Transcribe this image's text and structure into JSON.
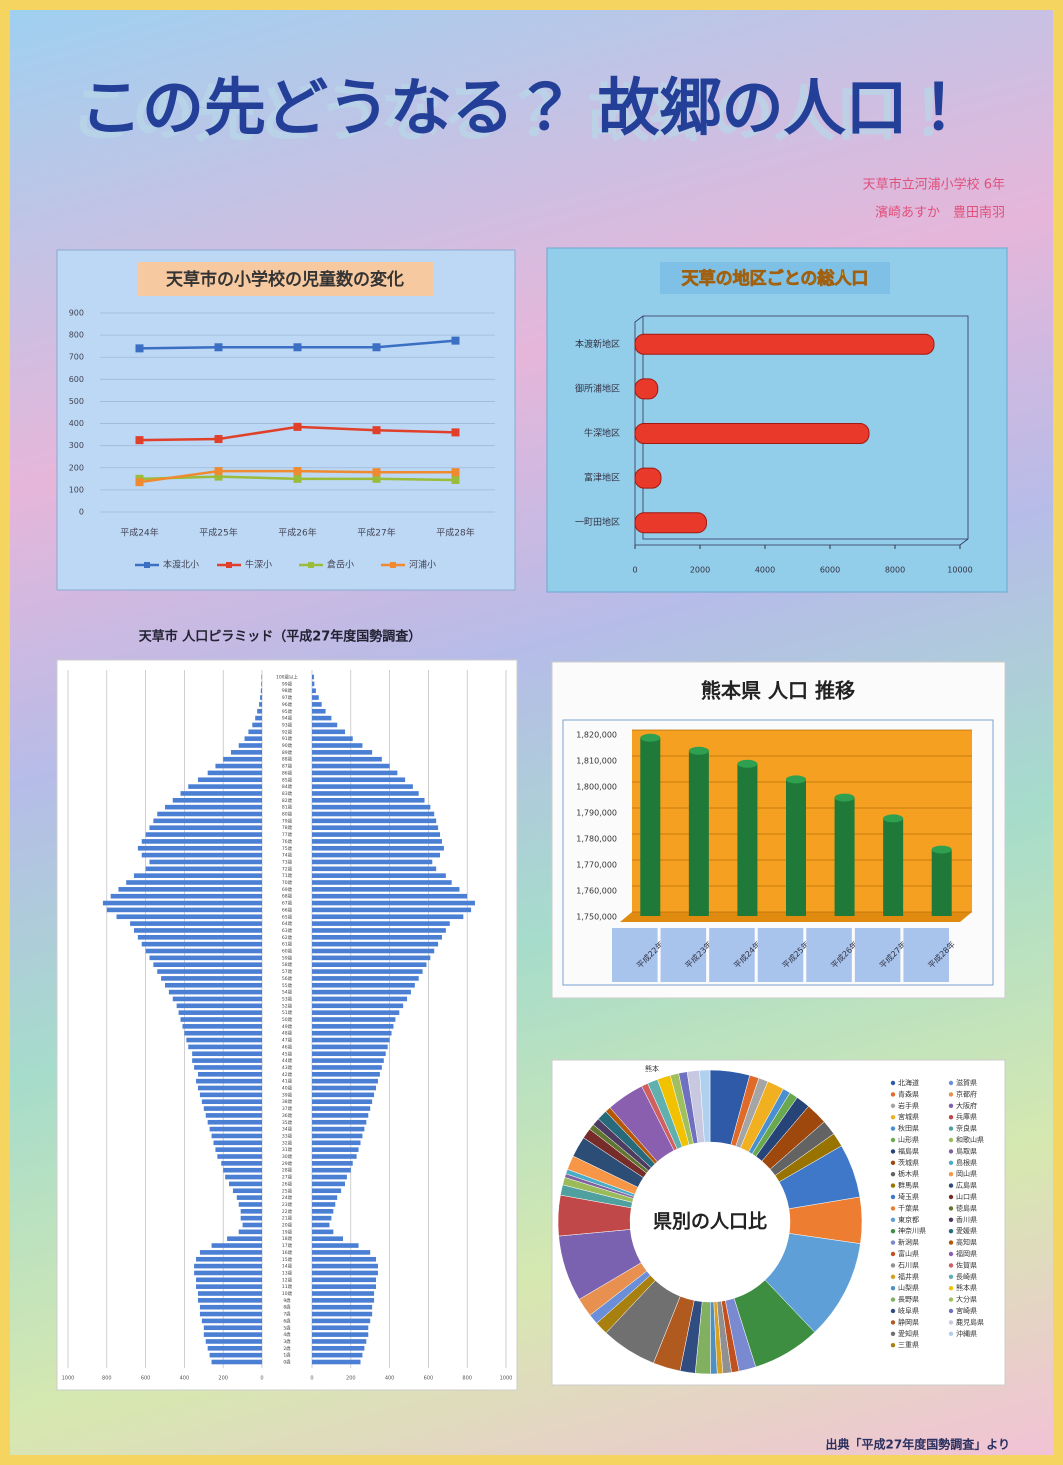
{
  "poster": {
    "title": "この先どうなる？ 故郷の人口！",
    "school": "天草市立河浦小学校 6年",
    "authors": "濱崎あすか　豊田南羽",
    "source": "出典「平成27年度国勢調査」より"
  },
  "chart_data": [
    {
      "type": "line",
      "title": "天草市の小学校の児童数の変化",
      "categories": [
        "平成24年",
        "平成25年",
        "平成26年",
        "平成27年",
        "平成28年"
      ],
      "ylim": [
        0,
        900
      ],
      "yticks": [
        0,
        100,
        200,
        300,
        400,
        500,
        600,
        700,
        800,
        900
      ],
      "grid": true,
      "legend": "bottom",
      "series": [
        {
          "name": "本渡北小",
          "color": "#3a6fc4",
          "values": [
            740,
            745,
            745,
            745,
            775
          ]
        },
        {
          "name": "牛深小",
          "color": "#e0402a",
          "values": [
            325,
            330,
            385,
            370,
            360
          ]
        },
        {
          "name": "倉岳小",
          "color": "#9bbb3a",
          "values": [
            150,
            160,
            150,
            150,
            145
          ]
        },
        {
          "name": "河浦小",
          "color": "#f08a30",
          "values": [
            135,
            185,
            185,
            180,
            180
          ]
        }
      ]
    },
    {
      "type": "bar",
      "horizontal": true,
      "title": "天草の地区ごとの総人口",
      "categories": [
        "本渡新地区",
        "御所浦地区",
        "牛深地区",
        "富津地区",
        "一町田地区"
      ],
      "values": [
        9200,
        700,
        7200,
        800,
        2200
      ],
      "color": "#e8392a",
      "xlim": [
        0,
        10000
      ],
      "xticks": [
        0,
        2000,
        4000,
        6000,
        8000,
        10000
      ]
    },
    {
      "type": "pyramid",
      "title": "天草市 人口ピラミッド（平成27年度国勢調査）",
      "categories": [
        "0歳",
        "1歳",
        "2歳",
        "3歳",
        "4歳",
        "5歳",
        "6歳",
        "7歳",
        "8歳",
        "9歳",
        "10歳",
        "11歳",
        "12歳",
        "13歳",
        "14歳",
        "15歳",
        "16歳",
        "17歳",
        "18歳",
        "19歳",
        "20歳",
        "21歳",
        "22歳",
        "23歳",
        "24歳",
        "25歳",
        "26歳",
        "27歳",
        "28歳",
        "29歳",
        "30歳",
        "31歳",
        "32歳",
        "33歳",
        "34歳",
        "35歳",
        "36歳",
        "37歳",
        "38歳",
        "39歳",
        "40歳",
        "41歳",
        "42歳",
        "43歳",
        "44歳",
        "45歳",
        "46歳",
        "47歳",
        "48歳",
        "49歳",
        "50歳",
        "51歳",
        "52歳",
        "53歳",
        "54歳",
        "55歳",
        "56歳",
        "57歳",
        "58歳",
        "59歳",
        "60歳",
        "61歳",
        "62歳",
        "63歳",
        "64歳",
        "65歳",
        "66歳",
        "67歳",
        "68歳",
        "69歳",
        "70歳",
        "71歳",
        "72歳",
        "73歳",
        "74歳",
        "75歳",
        "76歳",
        "77歳",
        "78歳",
        "79歳",
        "80歳",
        "81歳",
        "82歳",
        "83歳",
        "84歳",
        "85歳",
        "86歳",
        "87歳",
        "88歳",
        "89歳",
        "90歳",
        "91歳",
        "92歳",
        "93歳",
        "94歳",
        "95歳",
        "96歳",
        "97歳",
        "98歳",
        "99歳",
        "100歳以上"
      ],
      "xlim": [
        0,
        1000
      ],
      "xticks": [
        0,
        200,
        400,
        600,
        800,
        1000
      ],
      "grid": true,
      "series": [
        {
          "color": "#4a7fd4",
          "values": [
            260,
            270,
            280,
            290,
            300,
            300,
            310,
            320,
            320,
            330,
            330,
            340,
            340,
            350,
            350,
            340,
            320,
            260,
            180,
            120,
            100,
            110,
            110,
            120,
            130,
            150,
            170,
            190,
            200,
            210,
            230,
            240,
            250,
            260,
            270,
            280,
            290,
            300,
            310,
            320,
            330,
            340,
            330,
            350,
            360,
            360,
            380,
            390,
            400,
            410,
            420,
            430,
            440,
            460,
            480,
            500,
            520,
            540,
            560,
            580,
            600,
            620,
            640,
            660,
            680,
            750,
            800,
            820,
            780,
            740,
            700,
            660,
            600,
            580,
            620,
            640,
            620,
            600,
            580,
            560,
            540,
            500,
            460,
            420,
            380,
            330,
            280,
            240,
            200,
            160,
            120,
            90,
            70,
            50,
            35,
            25,
            15,
            10,
            6,
            4,
            3
          ]
        },
        {
          "color": "#4a7fd4",
          "values": [
            250,
            260,
            270,
            280,
            290,
            290,
            300,
            310,
            310,
            320,
            320,
            330,
            330,
            340,
            340,
            330,
            300,
            240,
            160,
            110,
            90,
            100,
            110,
            120,
            130,
            150,
            170,
            180,
            200,
            210,
            230,
            240,
            250,
            260,
            270,
            280,
            290,
            300,
            310,
            320,
            330,
            340,
            350,
            360,
            370,
            380,
            390,
            400,
            410,
            420,
            430,
            450,
            470,
            490,
            510,
            530,
            550,
            570,
            590,
            610,
            630,
            650,
            670,
            690,
            710,
            780,
            820,
            840,
            800,
            760,
            720,
            690,
            640,
            620,
            660,
            680,
            670,
            660,
            650,
            640,
            630,
            610,
            580,
            550,
            520,
            480,
            440,
            400,
            360,
            310,
            260,
            210,
            170,
            130,
            100,
            70,
            50,
            35,
            20,
            12,
            10
          ]
        }
      ]
    },
    {
      "type": "bar",
      "horizontal": false,
      "title": "熊本県 人口 推移",
      "categories": [
        "平成22年",
        "平成23年",
        "平成24年",
        "平成25年",
        "平成26年",
        "平成27年",
        "平成28年"
      ],
      "values": [
        1817000,
        1812000,
        1807000,
        1801000,
        1794000,
        1786000,
        1774000
      ],
      "color": "#1f7a3a",
      "ylim": [
        1750000,
        1820000
      ],
      "yticks": [
        {
          "value": 1750000,
          "label": "1,750,000"
        },
        {
          "value": 1760000,
          "label": "1,760,000"
        },
        {
          "value": 1770000,
          "label": "1,770,000"
        },
        {
          "value": 1780000,
          "label": "1,780,000"
        },
        {
          "value": 1790000,
          "label": "1,790,000"
        },
        {
          "value": 1800000,
          "label": "1,800,000"
        },
        {
          "value": 1810000,
          "label": "1,810,000"
        },
        {
          "value": 1820000,
          "label": "1,820,000"
        }
      ],
      "grid": true
    },
    {
      "type": "donut",
      "title": "県別の人口比",
      "annotation": "熊本",
      "legend": "right",
      "categories": [
        "北海道",
        "青森県",
        "岩手県",
        "宮城県",
        "秋田県",
        "山形県",
        "福島県",
        "茨城県",
        "栃木県",
        "群馬県",
        "埼玉県",
        "千葉県",
        "東京都",
        "神奈川県",
        "新潟県",
        "富山県",
        "石川県",
        "福井県",
        "山梨県",
        "長野県",
        "岐阜県",
        "静岡県",
        "愛知県",
        "三重県",
        "滋賀県",
        "京都府",
        "大阪府",
        "兵庫県",
        "奈良県",
        "和歌山県",
        "鳥取県",
        "島根県",
        "岡山県",
        "広島県",
        "山口県",
        "徳島県",
        "香川県",
        "愛媛県",
        "高知県",
        "福岡県",
        "佐賀県",
        "長崎県",
        "熊本県",
        "大分県",
        "宮崎県",
        "鹿児島県",
        "沖縄県"
      ],
      "values": [
        4.2,
        1.0,
        1.0,
        1.8,
        0.8,
        0.9,
        1.5,
        2.3,
        1.6,
        1.5,
        5.7,
        4.9,
        10.6,
        7.2,
        1.8,
        0.8,
        0.9,
        0.6,
        0.7,
        1.6,
        1.6,
        2.9,
        5.9,
        1.4,
        1.1,
        2.0,
        7.0,
        4.3,
        1.1,
        0.8,
        0.4,
        0.5,
        1.5,
        2.2,
        1.1,
        0.6,
        0.8,
        1.1,
        0.6,
        4.0,
        0.7,
        1.1,
        1.4,
        0.9,
        0.9,
        1.3,
        1.1
      ],
      "colors": [
        "#2f5aa8",
        "#e06a2a",
        "#a5a5a5",
        "#f0b020",
        "#4a90d0",
        "#6aa84f",
        "#264478",
        "#9e480e",
        "#636363",
        "#997300",
        "#3f78c8",
        "#ed7d31",
        "#5f9fd8",
        "#3e8e41",
        "#7a8ad0",
        "#c05020",
        "#909090",
        "#d8a020",
        "#5090c0",
        "#80b060",
        "#304c80",
        "#b05a20",
        "#707070",
        "#a88010",
        "#6a8ed8",
        "#e89050",
        "#7a62b0",
        "#c04848",
        "#50a0a0",
        "#9bbb59",
        "#8064a2",
        "#4bacc6",
        "#f79646",
        "#2c4d75",
        "#772c2a",
        "#5f7530",
        "#4d3b62",
        "#276a7c",
        "#b65708",
        "#8b5fb0",
        "#d06060",
        "#60b0b0",
        "#f2c200",
        "#a0c060",
        "#7070c0",
        "#c8c8e0",
        "#b0d0f0"
      ]
    }
  ]
}
